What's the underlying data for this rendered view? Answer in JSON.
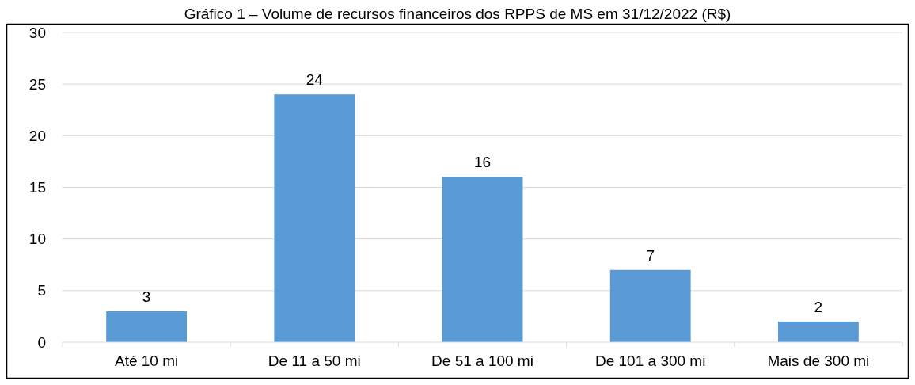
{
  "chart_data": {
    "type": "bar",
    "title": "Gráfico 1 – Volume de recursos financeiros dos RPPS de MS em 31/12/2022 (R$)",
    "categories": [
      "Até 10 mi",
      "De 11 a 50 mi",
      "De 51 a 100 mi",
      "De 101 a 300 mi",
      "Mais de 300 mi"
    ],
    "values": [
      3,
      24,
      16,
      7,
      2
    ],
    "color": "#5b9bd5",
    "ylim": [
      0,
      30
    ],
    "yticks": [
      0,
      5,
      10,
      15,
      20,
      25,
      30
    ],
    "grid": "y",
    "data_labels": true
  }
}
